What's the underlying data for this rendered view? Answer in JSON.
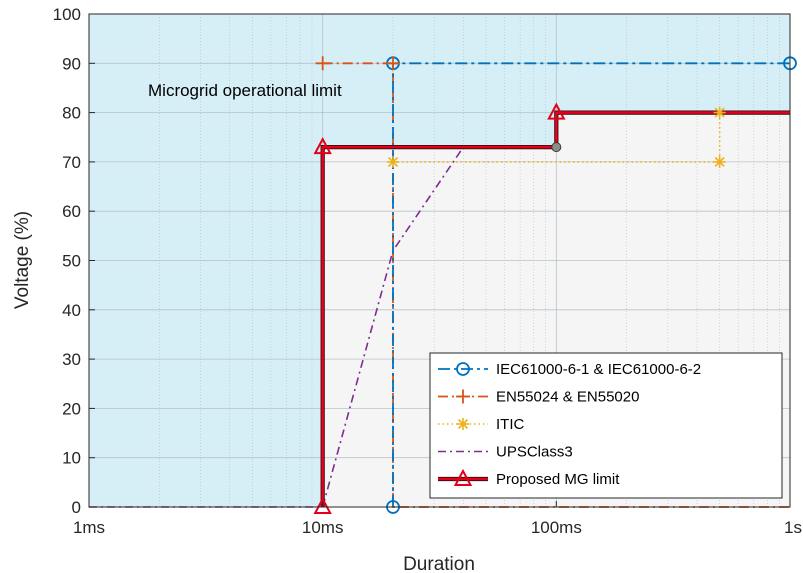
{
  "chart_data": {
    "type": "line",
    "xscale": "log",
    "xlim": [
      "1ms",
      "1s"
    ],
    "ylim": [
      0,
      100
    ],
    "xlabel": "Duration",
    "ylabel": "Voltage (%)",
    "x_ticks": [
      "1ms",
      "10ms",
      "100ms",
      "1s"
    ],
    "y_ticks": [
      0,
      10,
      20,
      30,
      40,
      50,
      60,
      70,
      80,
      90,
      100
    ],
    "grid": true,
    "legend_position": "bottom-right",
    "annotation": "Microgrid operational limit",
    "regions": {
      "operational": {
        "color": "#d6eff7"
      },
      "non_operational": {
        "color": "#f5f5f5"
      }
    },
    "series": [
      {
        "name": "IEC61000-6-1 & IEC61000-6-2",
        "color": "#0072BD",
        "marker": "circle",
        "x": [
          "20ms",
          "20ms",
          "1s"
        ],
        "y": [
          0,
          90,
          90
        ]
      },
      {
        "name": "EN55024 & EN55020",
        "color": "#D95319",
        "marker": "plus",
        "x": [
          "10ms",
          "20ms",
          "20ms",
          "1s"
        ],
        "y": [
          90,
          90,
          0,
          0
        ],
        "marker_points": [
          [
            "10ms",
            90
          ],
          [
            "20ms",
            90
          ]
        ]
      },
      {
        "name": "ITIC",
        "color": "#EDB120",
        "marker": "star",
        "x": [
          "20ms",
          "500ms",
          "500ms",
          "1s"
        ],
        "y": [
          70,
          70,
          80,
          80
        ],
        "marker_points": [
          [
            "20ms",
            70
          ],
          [
            "500ms",
            70
          ],
          [
            "500ms",
            80
          ]
        ]
      },
      {
        "name": "UPSClass3",
        "color": "#7E2F8E",
        "marker": "none",
        "x": [
          "1ms",
          "10ms",
          "20ms",
          "40ms"
        ],
        "y": [
          0,
          0,
          52,
          73
        ]
      },
      {
        "name": "Proposed MG limit",
        "color": "#E3001B",
        "marker": "triangle",
        "x": [
          "10ms",
          "10ms",
          "100ms",
          "100ms",
          "1s"
        ],
        "y": [
          0,
          73,
          73,
          80,
          80
        ],
        "marker_points": [
          [
            "10ms",
            0
          ],
          [
            "10ms",
            73
          ],
          [
            "100ms",
            80
          ]
        ]
      }
    ],
    "extra_points": [
      {
        "x": "100ms",
        "y": 73,
        "marker": "grey-circle"
      }
    ]
  }
}
